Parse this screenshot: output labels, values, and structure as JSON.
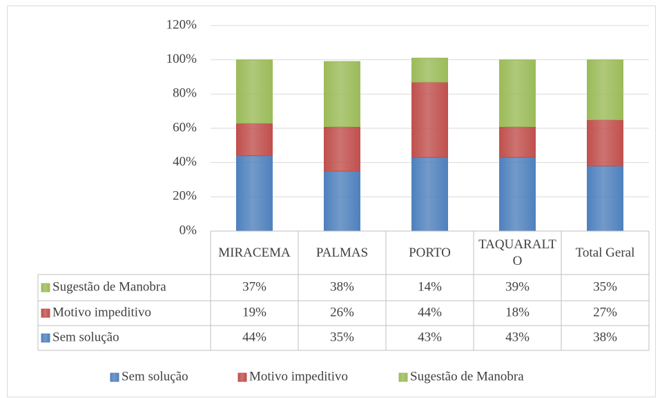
{
  "chart_data": {
    "type": "stacked_bar",
    "categories": [
      "MIRACEMA",
      "PALMAS",
      "PORTO",
      "TAQUARALTO",
      "Total Geral"
    ],
    "series": [
      {
        "name": "Sem solução",
        "color": "#4f81bd",
        "values": [
          44,
          35,
          43,
          43,
          38
        ],
        "value_labels": [
          "44%",
          "35%",
          "43%",
          "43%",
          "38%"
        ]
      },
      {
        "name": "Motivo impeditivo",
        "color": "#c0504d",
        "values": [
          19,
          26,
          44,
          18,
          27
        ],
        "value_labels": [
          "19%",
          "26%",
          "44%",
          "18%",
          "27%"
        ]
      },
      {
        "name": "Sugestão de Manobra",
        "color": "#9bbb59",
        "values": [
          37,
          38,
          14,
          39,
          35
        ],
        "value_labels": [
          "37%",
          "38%",
          "14%",
          "39%",
          "35%"
        ]
      }
    ],
    "ylim": [
      0,
      120
    ],
    "yticks": [
      {
        "value": 0,
        "label": "0%"
      },
      {
        "value": 20,
        "label": "20%"
      },
      {
        "value": 40,
        "label": "40%"
      },
      {
        "value": 60,
        "label": "60%"
      },
      {
        "value": 80,
        "label": "80%"
      },
      {
        "value": 100,
        "label": "100%"
      },
      {
        "value": 120,
        "label": "120%"
      }
    ],
    "grid": true,
    "legend": "bottom"
  }
}
